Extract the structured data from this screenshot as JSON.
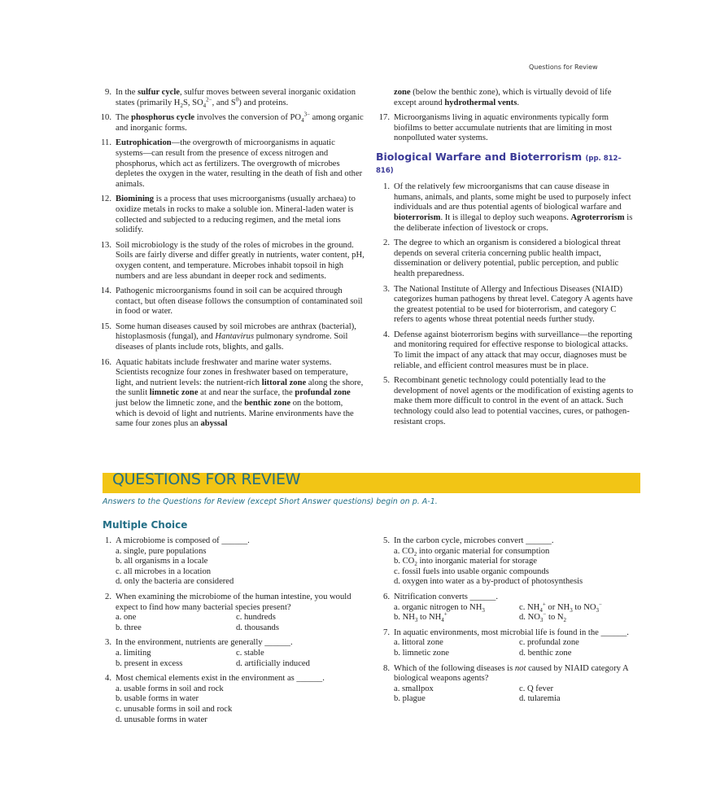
{
  "running_head": "Questions for Review",
  "left_items": [
    {
      "n": "9.",
      "t": [
        [
          "",
          "In the "
        ],
        [
          "b",
          "sulfur cycle"
        ],
        [
          "",
          ", sulfur moves between several inorganic oxidation states (primarily H"
        ],
        [
          "sub",
          "2"
        ],
        [
          "",
          "S, SO"
        ],
        [
          "sub",
          "4"
        ],
        [
          "sup",
          "2−"
        ],
        [
          "",
          ", and S"
        ],
        [
          "sup",
          "0"
        ],
        [
          "",
          ") and proteins."
        ]
      ]
    },
    {
      "n": "10.",
      "t": [
        [
          "",
          "The "
        ],
        [
          "b",
          "phosphorus cycle"
        ],
        [
          "",
          " involves the conversion of PO"
        ],
        [
          "sub",
          "4"
        ],
        [
          "sup",
          "3−"
        ],
        [
          "",
          " among organic and inorganic forms."
        ]
      ]
    },
    {
      "n": "11.",
      "t": [
        [
          "b",
          "Eutrophication"
        ],
        [
          "",
          "—the overgrowth of microorganisms in aquatic systems—can result from the presence of excess nitrogen and phosphorus, which act as fertilizers. The overgrowth of microbes depletes the oxygen in the water, resulting in the death of fish and other animals."
        ]
      ]
    },
    {
      "n": "12.",
      "t": [
        [
          "b",
          "Biomining"
        ],
        [
          "",
          " is a process that uses microorganisms (usually archaea) to oxidize metals in rocks to make a soluble ion. Mineral-laden water is collected and subjected to a reducing regimen, and the metal ions solidify."
        ]
      ]
    },
    {
      "n": "13.",
      "t": [
        [
          "",
          "Soil microbiology is the study of the roles of microbes in the ground. Soils are fairly diverse and differ greatly in nutrients, water content, pH, oxygen content, and temperature. Microbes inhabit topsoil in high numbers and are less abundant in deeper rock and sediments."
        ]
      ]
    },
    {
      "n": "14.",
      "t": [
        [
          "",
          "Pathogenic microorganisms found in soil can be acquired through contact, but often disease follows the consumption of contaminated soil in food or water."
        ]
      ]
    },
    {
      "n": "15.",
      "t": [
        [
          "",
          "Some human diseases caused by soil microbes are anthrax (bacterial), histoplasmosis (fungal), and "
        ],
        [
          "i",
          "Hantavirus"
        ],
        [
          "",
          " pulmonary syndrome. Soil diseases of plants include rots, blights, and galls."
        ]
      ]
    },
    {
      "n": "16.",
      "t": [
        [
          "",
          "Aquatic habitats include freshwater and marine water systems. Scientists recognize four zones in freshwater based on temperature, light, and nutrient levels: the nutrient-rich "
        ],
        [
          "b",
          "littoral zone"
        ],
        [
          "",
          " along the shore, the sunlit "
        ],
        [
          "b",
          "limnetic zone"
        ],
        [
          "",
          " at and near the surface, the "
        ],
        [
          "b",
          "profundal zone"
        ],
        [
          "",
          " just below the limnetic zone, and the "
        ],
        [
          "b",
          "benthic zone"
        ],
        [
          "",
          " on the bottom, which is devoid of light and nutrients. Marine environments have the same four zones plus an "
        ],
        [
          "b",
          "abyssal"
        ]
      ]
    }
  ],
  "right_items": [
    {
      "n": "",
      "t": [
        [
          "b",
          "zone"
        ],
        [
          "",
          " (below the benthic zone), which is virtually devoid of life except around "
        ],
        [
          "b",
          "hydrothermal vents"
        ],
        [
          "",
          "."
        ]
      ]
    },
    {
      "n": "17.",
      "t": [
        [
          "",
          "Microorganisms living in aquatic environments typically form biofilms to better accumulate nutrients that are limiting in most nonpolluted water systems."
        ]
      ]
    }
  ],
  "bio_heading": "Biological Warfare and Bioterrorism",
  "bio_pages": "(pp. 812–816)",
  "bio_items": [
    {
      "n": "1.",
      "t": [
        [
          "",
          "Of the relatively few microorganisms that can cause disease in humans, animals, and plants, some might be used to purposely infect individuals and are thus potential agents of biological warfare and "
        ],
        [
          "b",
          "bioterrorism"
        ],
        [
          "",
          ". It is illegal to deploy such weapons. "
        ],
        [
          "b",
          "Agroterrorism"
        ],
        [
          "",
          " is the deliberate infection of livestock or crops."
        ]
      ]
    },
    {
      "n": "2.",
      "t": [
        [
          "",
          "The degree to which an organism is considered a biological threat depends on several criteria concerning public health impact, dissemination or delivery potential, public perception, and public health preparedness."
        ]
      ]
    },
    {
      "n": "3.",
      "t": [
        [
          "",
          "The National Institute of Allergy and Infectious Diseases (NIAID) categorizes human pathogens by threat level. Category A agents have the greatest potential to be used for bioterrorism, and category C refers to agents whose threat potential needs further study."
        ]
      ]
    },
    {
      "n": "4.",
      "t": [
        [
          "",
          "Defense against bioterrorism begins with surveillance—the reporting and monitoring required for effective response to biological attacks. To limit the impact of any attack that may occur, diagnoses must be reliable, and efficient control measures must be in place."
        ]
      ]
    },
    {
      "n": "5.",
      "t": [
        [
          "",
          "Recombinant genetic technology could potentially lead to the development of novel agents or the modification of existing agents to make them more difficult to control in the event of an attack. Such technology could also lead to potential vaccines, cures, or pathogen-resistant crops."
        ]
      ]
    }
  ],
  "review": {
    "title": "QUESTIONS FOR REVIEW",
    "answers_note": "Answers to the Questions for Review (except Short Answer questions) begin on p. A-1.",
    "mc_heading": "Multiple Choice",
    "left": [
      {
        "n": "1.",
        "stem": [
          [
            "",
            "A microbiome is composed of ______."
          ]
        ],
        "two": false,
        "opts": [
          [
            [
              "",
              "a. single, pure populations"
            ]
          ],
          [
            [
              "",
              "b. all organisms in a locale"
            ]
          ],
          [
            [
              "",
              "c. all microbes in a location"
            ]
          ],
          [
            [
              "",
              "d. only the bacteria are considered"
            ]
          ]
        ]
      },
      {
        "n": "2.",
        "stem": [
          [
            "",
            "When examining the microbiome of the human intestine, you would expect to find how many bacterial species present?"
          ]
        ],
        "two": true,
        "opts": [
          [
            [
              "",
              "a. one"
            ]
          ],
          [
            [
              "",
              "b. three"
            ]
          ],
          [
            [
              "",
              "c. hundreds"
            ]
          ],
          [
            [
              "",
              "d. thousands"
            ]
          ]
        ]
      },
      {
        "n": "3.",
        "stem": [
          [
            "",
            "In the environment, nutrients are generally ______."
          ]
        ],
        "two": true,
        "opts": [
          [
            [
              "",
              "a. limiting"
            ]
          ],
          [
            [
              "",
              "b. present in excess"
            ]
          ],
          [
            [
              "",
              "c. stable"
            ]
          ],
          [
            [
              "",
              "d. artificially induced"
            ]
          ]
        ]
      },
      {
        "n": "4.",
        "stem": [
          [
            "",
            "Most chemical elements exist in the environment as ______."
          ]
        ],
        "two": false,
        "opts": [
          [
            [
              "",
              "a. usable forms in soil and rock"
            ]
          ],
          [
            [
              "",
              "b. usable forms in water"
            ]
          ],
          [
            [
              "",
              "c. unusable forms in soil and rock"
            ]
          ],
          [
            [
              "",
              "d. unusable forms in water"
            ]
          ]
        ]
      }
    ],
    "right": [
      {
        "n": "5.",
        "stem": [
          [
            "",
            "In the carbon cycle, microbes convert ______."
          ]
        ],
        "two": false,
        "opts": [
          [
            [
              "",
              "a. CO"
            ],
            [
              "sub",
              "2"
            ],
            [
              "",
              " into organic material for consumption"
            ]
          ],
          [
            [
              "",
              "b. CO"
            ],
            [
              "sub",
              "2"
            ],
            [
              "",
              " into inorganic material for storage"
            ]
          ],
          [
            [
              "",
              "c. fossil fuels into usable organic compounds"
            ]
          ],
          [
            [
              "",
              "d. oxygen into water as a by-product of photosynthesis"
            ]
          ]
        ]
      },
      {
        "n": "6.",
        "stem": [
          [
            "",
            "Nitrification converts ______."
          ]
        ],
        "two": true,
        "opts": [
          [
            [
              "",
              "a. organic nitrogen to NH"
            ],
            [
              "sub",
              "3"
            ]
          ],
          [
            [
              "",
              "b. NH"
            ],
            [
              "sub",
              "3"
            ],
            [
              "",
              " to NH"
            ],
            [
              "sub",
              "4"
            ],
            [
              "sup",
              "+"
            ]
          ],
          [
            [
              "",
              "c. NH"
            ],
            [
              "sub",
              "4"
            ],
            [
              "sup",
              "+"
            ],
            [
              "",
              " or NH"
            ],
            [
              "sub",
              "3"
            ],
            [
              "",
              " to NO"
            ],
            [
              "sub",
              "3"
            ],
            [
              "sup",
              "−"
            ]
          ],
          [
            [
              "",
              "d. NO"
            ],
            [
              "sub",
              "3"
            ],
            [
              "sup",
              "−"
            ],
            [
              "",
              " to N"
            ],
            [
              "sub",
              "2"
            ]
          ]
        ]
      },
      {
        "n": "7.",
        "stem": [
          [
            "",
            "In aquatic environments, most microbial life is found in the ______."
          ]
        ],
        "two": true,
        "opts": [
          [
            [
              "",
              "a. littoral zone"
            ]
          ],
          [
            [
              "",
              "b. limnetic zone"
            ]
          ],
          [
            [
              "",
              "c. profundal zone"
            ]
          ],
          [
            [
              "",
              "d. benthic zone"
            ]
          ]
        ]
      },
      {
        "n": "8.",
        "stem": [
          [
            "",
            "Which of the following diseases is "
          ],
          [
            "i",
            "not"
          ],
          [
            "",
            " caused by NIAID category A biological weapons agents?"
          ]
        ],
        "two": true,
        "opts": [
          [
            [
              "",
              "a. smallpox"
            ]
          ],
          [
            [
              "",
              "b. plague"
            ]
          ],
          [
            [
              "",
              "c. Q fever"
            ]
          ],
          [
            [
              "",
              "d. tularemia"
            ]
          ]
        ]
      }
    ]
  },
  "colors": {
    "band": "#f2c515",
    "teal": "#236f86",
    "heading_purple": "#3b3a97"
  }
}
